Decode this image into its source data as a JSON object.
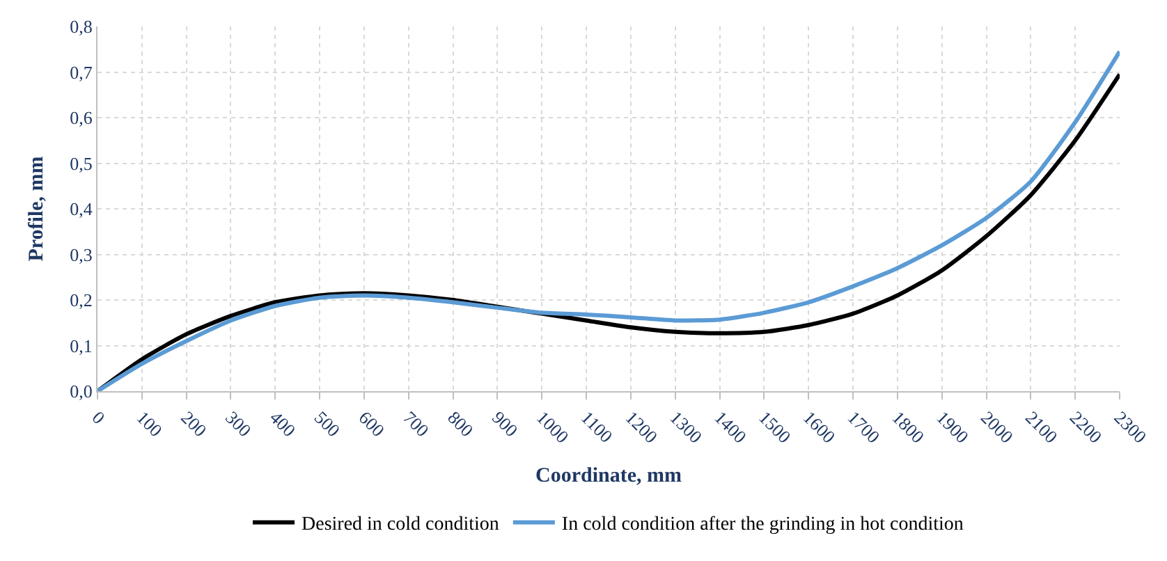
{
  "chart_data": {
    "type": "line",
    "xlabel": "Coordinate, mm",
    "ylabel": "Profile, mm",
    "x": [
      0,
      100,
      200,
      300,
      400,
      500,
      600,
      700,
      800,
      900,
      1000,
      1100,
      1200,
      1300,
      1400,
      1500,
      1600,
      1700,
      1800,
      1900,
      2000,
      2100,
      2200,
      2300
    ],
    "series": [
      {
        "name": "Desired in cold condition",
        "color": "#000000",
        "values": [
          0,
          0.07,
          0.125,
          0.165,
          0.195,
          0.21,
          0.215,
          0.21,
          0.2,
          0.185,
          0.17,
          0.155,
          0.14,
          0.13,
          0.127,
          0.13,
          0.145,
          0.17,
          0.21,
          0.265,
          0.34,
          0.43,
          0.55,
          0.695
        ]
      },
      {
        "name": "In cold condition after the grinding in hot condition",
        "color": "#5b9bd5",
        "values": [
          0,
          0.06,
          0.11,
          0.155,
          0.187,
          0.205,
          0.21,
          0.205,
          0.195,
          0.183,
          0.172,
          0.168,
          0.162,
          0.155,
          0.157,
          0.172,
          0.195,
          0.23,
          0.27,
          0.32,
          0.38,
          0.46,
          0.59,
          0.745
        ]
      }
    ],
    "xlim": [
      0,
      2300
    ],
    "xticks": [
      0,
      100,
      200,
      300,
      400,
      500,
      600,
      700,
      800,
      900,
      1000,
      1100,
      1200,
      1300,
      1400,
      1500,
      1600,
      1700,
      1800,
      1900,
      2000,
      2100,
      2200,
      2300
    ],
    "ylim": [
      0,
      0.8
    ],
    "yticks": [
      {
        "value": 0,
        "label": "0,0"
      },
      {
        "value": 0.1,
        "label": "0,1"
      },
      {
        "value": 0.2,
        "label": "0,2"
      },
      {
        "value": 0.3,
        "label": "0,3"
      },
      {
        "value": 0.4,
        "label": "0,4"
      },
      {
        "value": 0.5,
        "label": "0,5"
      },
      {
        "value": 0.6,
        "label": "0,6"
      },
      {
        "value": 0.7,
        "label": "0,7"
      },
      {
        "value": 0.8,
        "label": "0,8"
      }
    ],
    "grid": true,
    "legend": "bottom",
    "marker": "none",
    "line_style": "solid"
  }
}
